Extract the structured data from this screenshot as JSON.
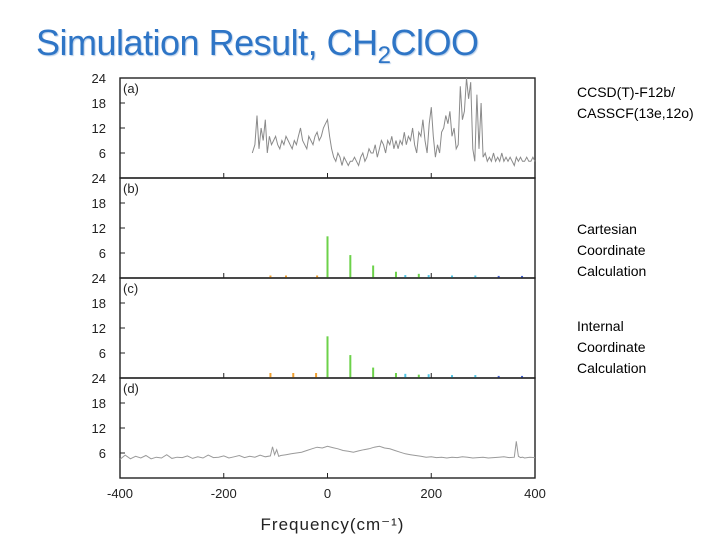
{
  "slide": {
    "title_main": "Simulation Result, CH",
    "title_subscript": "2",
    "title_tail": "ClOO"
  },
  "notes": {
    "a": [
      "CCSD(T)-F12b/",
      "CASSCF(13e,12o)"
    ],
    "b": [
      "Cartesian",
      "Coordinate",
      "Calculation"
    ],
    "c": [
      "Internal",
      "Coordinate",
      "Calculation"
    ]
  },
  "chart_data": {
    "type": "line",
    "layout": "stacked-panels",
    "xlabel": "Frequency(cm⁻¹)",
    "xlim": [
      -400,
      400
    ],
    "xticks": [
      -400,
      -200,
      0,
      200,
      400
    ],
    "ylim": [
      0,
      24
    ],
    "yticks": [
      6,
      12,
      18,
      24
    ],
    "grid": false,
    "panels": [
      {
        "label": "(a)",
        "kind": "trace",
        "color": "#8a8a8a",
        "x": [
          -145,
          -140,
          -136,
          -132,
          -128,
          -124,
          -120,
          -116,
          -112,
          -108,
          -104,
          -100,
          -96,
          -92,
          -88,
          -84,
          -80,
          -76,
          -72,
          -68,
          -64,
          -60,
          -56,
          -52,
          -48,
          -44,
          -40,
          -36,
          -32,
          -28,
          -24,
          -20,
          -16,
          -12,
          -8,
          -4,
          0,
          4,
          8,
          12,
          16,
          20,
          24,
          28,
          32,
          36,
          40,
          44,
          48,
          52,
          56,
          60,
          64,
          68,
          72,
          76,
          80,
          84,
          88,
          92,
          96,
          100,
          104,
          108,
          112,
          116,
          120,
          124,
          128,
          132,
          136,
          140,
          144,
          148,
          152,
          156,
          160,
          164,
          168,
          172,
          176,
          180,
          184,
          188,
          192,
          196,
          200,
          204,
          208,
          212,
          216,
          220,
          224,
          228,
          232,
          236,
          240,
          244,
          248,
          252,
          256,
          260,
          264,
          268,
          272,
          276,
          280,
          284,
          288,
          292,
          296,
          300,
          304,
          308,
          312,
          316,
          320,
          324,
          328,
          332,
          336,
          340,
          344,
          348,
          352,
          356,
          360,
          364,
          368,
          372,
          376,
          380,
          384,
          388,
          392,
          396,
          400
        ],
        "values": [
          6,
          8,
          15,
          7,
          12,
          9,
          14,
          6,
          10,
          8,
          9,
          10,
          8,
          7,
          9,
          8,
          10,
          9,
          8,
          7,
          9,
          8,
          10,
          12,
          9,
          8,
          7,
          10,
          9,
          8,
          10,
          11,
          9,
          10,
          12,
          13,
          14,
          10,
          7,
          5,
          4,
          6,
          5,
          3,
          5,
          4,
          3,
          4,
          4,
          5,
          4,
          3,
          5,
          6,
          4,
          5,
          7,
          6,
          6,
          8,
          5,
          7,
          9,
          8,
          6,
          9,
          8,
          10,
          7,
          9,
          7,
          9,
          8,
          11,
          8,
          10,
          9,
          12,
          8,
          6,
          11,
          10,
          14,
          9,
          6,
          13,
          17,
          10,
          5,
          8,
          6,
          11,
          12,
          15,
          13,
          16,
          10,
          12,
          7,
          8,
          22,
          14,
          16,
          24,
          19,
          23,
          7,
          4,
          20,
          7,
          18,
          5,
          6,
          4,
          5,
          4,
          6,
          4,
          5,
          4,
          6,
          4,
          5,
          4,
          5,
          4,
          3,
          5,
          4,
          5,
          4,
          4,
          5,
          4,
          4,
          5,
          4
        ]
      },
      {
        "label": "(b)",
        "kind": "stick",
        "sticks": [
          {
            "x": -110,
            "y": 0.6,
            "color": "#f0a030"
          },
          {
            "x": -80,
            "y": 0.6,
            "color": "#f0a030"
          },
          {
            "x": -20,
            "y": 0.6,
            "color": "#f0a030"
          },
          {
            "x": 0,
            "y": 10,
            "color": "#6cd24a"
          },
          {
            "x": 44,
            "y": 5.5,
            "color": "#6cd24a"
          },
          {
            "x": 88,
            "y": 3,
            "color": "#6cd24a"
          },
          {
            "x": 132,
            "y": 1.5,
            "color": "#6cd24a"
          },
          {
            "x": 176,
            "y": 1,
            "color": "#6cd24a"
          },
          {
            "x": 150,
            "y": 0.7,
            "color": "#4fc6e6"
          },
          {
            "x": 195,
            "y": 0.7,
            "color": "#4fc6e6"
          },
          {
            "x": 240,
            "y": 0.6,
            "color": "#4fc6e6"
          },
          {
            "x": 285,
            "y": 0.6,
            "color": "#4fc6e6"
          },
          {
            "x": 330,
            "y": 0.5,
            "color": "#3f5fd0"
          },
          {
            "x": 375,
            "y": 0.5,
            "color": "#3f5fd0"
          }
        ]
      },
      {
        "label": "(c)",
        "kind": "stick",
        "sticks": [
          {
            "x": -110,
            "y": 1.2,
            "color": "#f0a030"
          },
          {
            "x": -66,
            "y": 1.2,
            "color": "#f0a030"
          },
          {
            "x": -22,
            "y": 1.2,
            "color": "#f0a030"
          },
          {
            "x": 0,
            "y": 10,
            "color": "#6cd24a"
          },
          {
            "x": 44,
            "y": 5.5,
            "color": "#6cd24a"
          },
          {
            "x": 88,
            "y": 2.5,
            "color": "#6cd24a"
          },
          {
            "x": 132,
            "y": 1.2,
            "color": "#6cd24a"
          },
          {
            "x": 176,
            "y": 0.8,
            "color": "#6cd24a"
          },
          {
            "x": 150,
            "y": 1.0,
            "color": "#4fc6e6"
          },
          {
            "x": 195,
            "y": 0.9,
            "color": "#4fc6e6"
          },
          {
            "x": 240,
            "y": 0.7,
            "color": "#4fc6e6"
          },
          {
            "x": 285,
            "y": 0.7,
            "color": "#4fc6e6"
          },
          {
            "x": 330,
            "y": 0.5,
            "color": "#3f5fd0"
          },
          {
            "x": 375,
            "y": 0.5,
            "color": "#3f5fd0"
          }
        ]
      },
      {
        "label": "(d)",
        "kind": "trace",
        "color": "#9a9a9a",
        "x": [
          -400,
          -390,
          -380,
          -370,
          -360,
          -350,
          -340,
          -330,
          -320,
          -310,
          -300,
          -290,
          -280,
          -270,
          -260,
          -250,
          -240,
          -230,
          -220,
          -210,
          -200,
          -190,
          -180,
          -170,
          -160,
          -150,
          -140,
          -130,
          -120,
          -110,
          -106,
          -102,
          -98,
          -94,
          -90,
          -80,
          -70,
          -60,
          -50,
          -40,
          -30,
          -20,
          -10,
          0,
          10,
          20,
          30,
          40,
          50,
          60,
          70,
          80,
          90,
          100,
          110,
          120,
          130,
          140,
          150,
          160,
          170,
          180,
          190,
          200,
          210,
          220,
          230,
          240,
          250,
          260,
          270,
          280,
          290,
          300,
          310,
          320,
          330,
          340,
          350,
          360,
          364,
          368,
          372,
          376,
          380,
          390,
          400
        ],
        "values": [
          4.5,
          5.5,
          4.6,
          5.2,
          4.8,
          5.4,
          4.6,
          5.0,
          4.8,
          5.6,
          4.7,
          5.0,
          4.9,
          5.3,
          4.7,
          5.1,
          4.8,
          5.5,
          4.9,
          5.0,
          5.3,
          4.8,
          5.1,
          5.4,
          4.9,
          5.2,
          5.0,
          5.5,
          5.1,
          5.3,
          7.5,
          5.6,
          6.8,
          5.2,
          5.4,
          5.6,
          5.8,
          6.0,
          6.2,
          6.6,
          7.0,
          7.4,
          7.2,
          7.6,
          7.3,
          7.0,
          6.6,
          6.4,
          6.2,
          6.5,
          6.8,
          7.0,
          7.4,
          7.6,
          7.2,
          7.0,
          6.6,
          6.2,
          5.8,
          5.6,
          5.4,
          5.2,
          5.0,
          5.1,
          4.9,
          5.0,
          4.8,
          5.0,
          4.9,
          5.1,
          5.0,
          4.8,
          4.9,
          5.0,
          4.8,
          4.9,
          5.0,
          5.1,
          4.9,
          5.0,
          8.8,
          5.2,
          4.9,
          5.0,
          4.8,
          5.0,
          4.9
        ]
      }
    ]
  }
}
